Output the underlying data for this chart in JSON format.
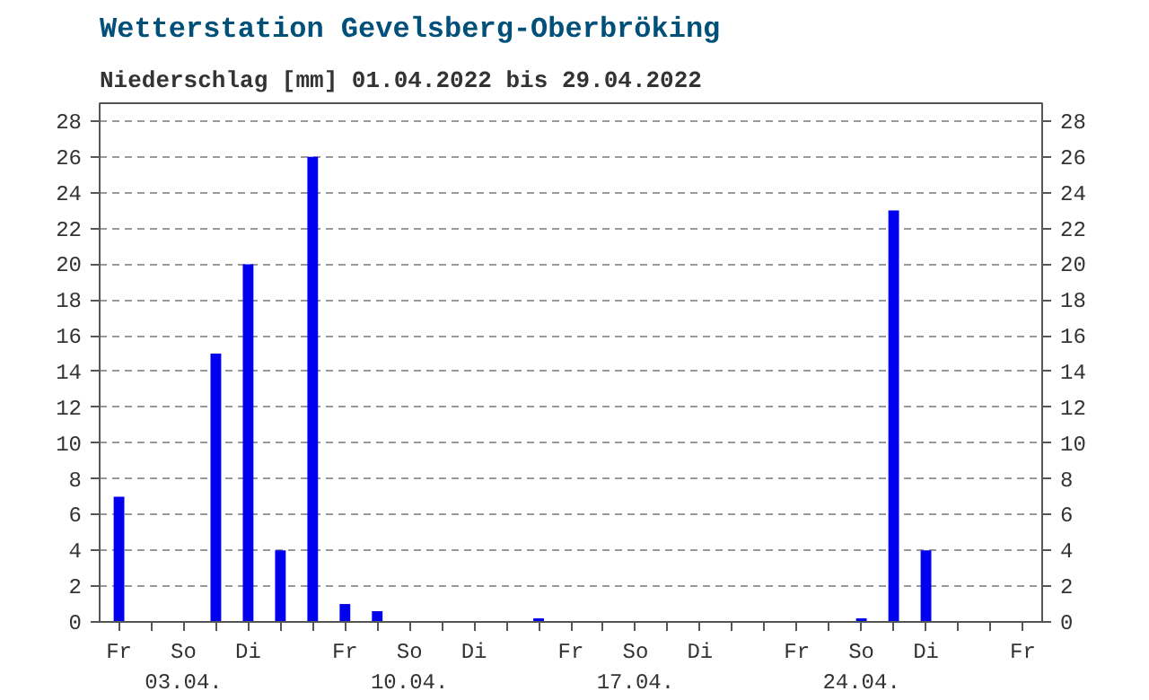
{
  "chart_data": {
    "type": "bar",
    "title": "Wetterstation Gevelsberg-Oberbröking",
    "subtitle": "Niederschlag [mm] 01.04.2022 bis 29.04.2022",
    "categories": [
      "Fr",
      null,
      "So\n03.04.",
      null,
      "Di",
      null,
      null,
      "Fr",
      null,
      "So\n10.04.",
      null,
      "Di",
      null,
      null,
      "Fr",
      null,
      "So\n17.04.",
      null,
      "Di",
      null,
      null,
      "Fr",
      null,
      "So\n24.04.",
      null,
      "Di",
      null,
      null,
      "Fr"
    ],
    "series": [
      {
        "color": "#0000ee",
        "values": [
          7,
          0,
          0,
          15,
          20,
          4,
          26,
          1,
          0.6,
          0,
          0,
          0,
          0,
          0.2,
          0,
          0,
          0,
          0,
          0,
          0,
          0,
          0,
          0,
          0.2,
          23,
          4,
          0,
          0,
          0
        ]
      }
    ],
    "ylim": [
      0,
      29
    ],
    "yticks": [
      0,
      2,
      4,
      6,
      8,
      10,
      12,
      14,
      16,
      18,
      20,
      22,
      24,
      26,
      28
    ],
    "y2lim": [
      0,
      29
    ],
    "y2ticks": [
      0,
      2,
      4,
      6,
      8,
      10,
      12,
      14,
      16,
      18,
      20,
      22,
      24,
      26,
      28
    ],
    "grid": "y"
  }
}
